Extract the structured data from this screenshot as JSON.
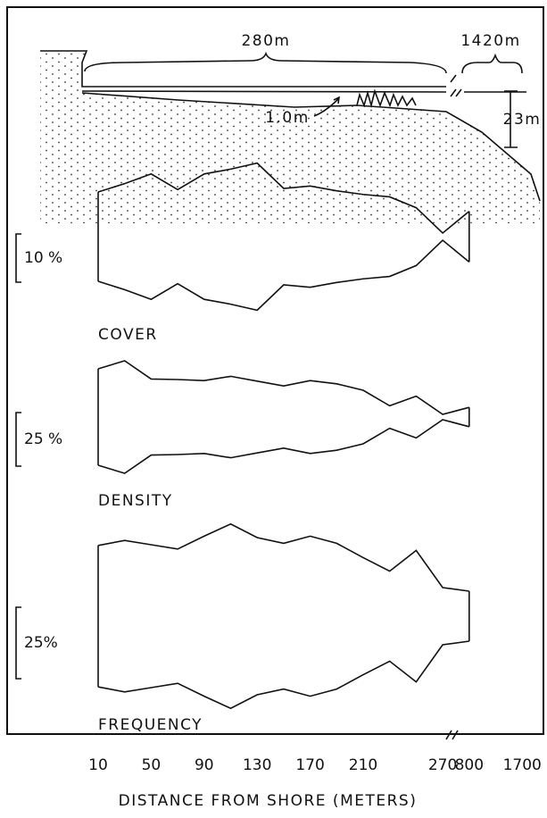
{
  "profile": {
    "labels": [
      "280m",
      "1420m",
      "1.0m",
      "23m"
    ]
  },
  "chart_data": {
    "type": "kite",
    "categories": [
      "10",
      null,
      "50",
      null,
      "90",
      null,
      "130",
      null,
      "170",
      null,
      "210",
      null,
      null,
      "270",
      "800",
      null,
      "1700"
    ],
    "xlabel": "DISTANCE FROM SHORE (METERS)",
    "series": [
      {
        "name": "COVER",
        "color": "#111111",
        "scale": {
          "value": 10,
          "label": "10 %"
        },
        "values": [
          18.5,
          22,
          26,
          19.5,
          26,
          28,
          30.5,
          20,
          21,
          19,
          17.5,
          16.5,
          12,
          1.5,
          10.5,
          null,
          null
        ]
      },
      {
        "name": "DENSITY",
        "color": "#111111",
        "scale": {
          "value": 25,
          "label": "25 %"
        },
        "values": [
          45,
          52.5,
          35.5,
          35,
          34,
          38,
          33.5,
          29,
          34,
          31,
          25,
          10.5,
          19.5,
          2.5,
          9,
          null,
          null
        ]
      },
      {
        "name": "FREQUENCY",
        "color": "#111111",
        "scale": {
          "value": 25,
          "label": "25%"
        },
        "values": [
          49.5,
          53,
          50,
          47,
          56,
          64.5,
          55,
          51,
          56,
          51,
          41,
          31.5,
          46,
          20,
          17.5,
          null,
          null
        ]
      }
    ]
  }
}
